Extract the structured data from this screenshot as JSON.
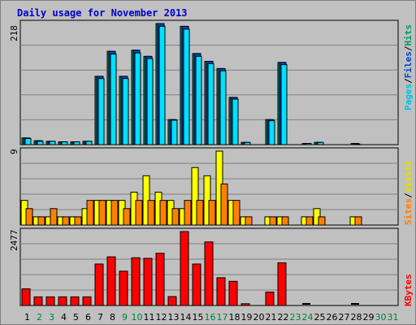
{
  "title": "Daily usage for November 2013",
  "colors": {
    "pages": "#00e0ff",
    "files": "#0044cc",
    "hits": "#009966",
    "sites": "#ff8000",
    "visits": "#ffff00",
    "kbytes": "#ff0000",
    "weekday": "#000000",
    "weekend": "#008040"
  },
  "chart_data": [
    {
      "type": "bar",
      "title": "Daily usage for November 2013",
      "ymax_label": "218",
      "ylim": [
        0,
        218
      ],
      "legend": [
        "Pages",
        "Files",
        "Hits"
      ],
      "categories": [
        "1",
        "2",
        "3",
        "4",
        "5",
        "6",
        "7",
        "8",
        "9",
        "10",
        "11",
        "12",
        "13",
        "14",
        "15",
        "16",
        "17",
        "18",
        "19",
        "20",
        "21",
        "22",
        "23",
        "24",
        "25",
        "26",
        "27",
        "28",
        "29",
        "30",
        "31"
      ],
      "series": [
        {
          "name": "Hits",
          "values": [
            12,
            7,
            6,
            5,
            5,
            6,
            123,
            168,
            123,
            170,
            159,
            218,
            45,
            213,
            164,
            150,
            137,
            85,
            4,
            0,
            45,
            148,
            0,
            2,
            4,
            0,
            0,
            2,
            0,
            0,
            0
          ]
        },
        {
          "name": "Files",
          "values": [
            12,
            7,
            6,
            5,
            5,
            6,
            123,
            168,
            123,
            170,
            159,
            218,
            45,
            213,
            164,
            150,
            137,
            85,
            4,
            0,
            45,
            148,
            0,
            2,
            4,
            0,
            0,
            2,
            0,
            0,
            0
          ]
        },
        {
          "name": "Pages",
          "values": [
            11,
            6,
            6,
            5,
            5,
            6,
            119,
            163,
            119,
            165,
            155,
            213,
            44,
            208,
            159,
            146,
            133,
            82,
            4,
            0,
            43,
            144,
            0,
            2,
            4,
            0,
            0,
            1,
            0,
            0,
            0
          ]
        }
      ]
    },
    {
      "type": "bar",
      "ymax_label": "9",
      "ylim": [
        0,
        9
      ],
      "legend": [
        "Sites",
        "Visits"
      ],
      "categories": [
        "1",
        "2",
        "3",
        "4",
        "5",
        "6",
        "7",
        "8",
        "9",
        "10",
        "11",
        "12",
        "13",
        "14",
        "15",
        "16",
        "17",
        "18",
        "19",
        "20",
        "21",
        "22",
        "23",
        "24",
        "25",
        "26",
        "27",
        "28",
        "29",
        "30",
        "31"
      ],
      "series": [
        {
          "name": "Visits",
          "values": [
            3,
            1,
            1,
            1,
            1,
            2,
            3,
            3,
            3,
            4,
            6,
            4,
            3,
            2,
            7,
            6,
            9,
            3,
            1,
            0,
            1,
            1,
            0,
            1,
            2,
            0,
            0,
            1,
            0,
            0,
            0
          ]
        },
        {
          "name": "Sites",
          "values": [
            2,
            1,
            2,
            1,
            1,
            3,
            3,
            3,
            2,
            3,
            3,
            3,
            2,
            3,
            3,
            3,
            5,
            3,
            1,
            0,
            1,
            1,
            0,
            1,
            1,
            0,
            0,
            1,
            0,
            0,
            0
          ]
        }
      ]
    },
    {
      "type": "bar",
      "ymax_label": "2477",
      "ylim": [
        0,
        2477
      ],
      "legend": [
        "KBytes"
      ],
      "categories": [
        "1",
        "2",
        "3",
        "4",
        "5",
        "6",
        "7",
        "8",
        "9",
        "10",
        "11",
        "12",
        "13",
        "14",
        "15",
        "16",
        "17",
        "18",
        "19",
        "20",
        "21",
        "22",
        "23",
        "24",
        "25",
        "26",
        "27",
        "28",
        "29",
        "30",
        "31"
      ],
      "series": [
        {
          "name": "KBytes",
          "values": [
            560,
            290,
            290,
            290,
            290,
            290,
            1390,
            1630,
            1150,
            1600,
            1580,
            1750,
            300,
            2477,
            1390,
            2130,
            930,
            810,
            60,
            0,
            450,
            1430,
            0,
            30,
            0,
            0,
            0,
            30,
            0,
            0,
            0
          ]
        }
      ]
    }
  ],
  "x_labels": [
    "1",
    "2",
    "3",
    "4",
    "5",
    "6",
    "7",
    "8",
    "9",
    "10",
    "11",
    "12",
    "13",
    "14",
    "15",
    "16",
    "17",
    "18",
    "19",
    "20",
    "21",
    "22",
    "23",
    "24",
    "25",
    "26",
    "27",
    "28",
    "29",
    "30",
    "31"
  ],
  "weekend_days": [
    "2",
    "3",
    "9",
    "10",
    "16",
    "17",
    "23",
    "24",
    "30",
    "31"
  ]
}
